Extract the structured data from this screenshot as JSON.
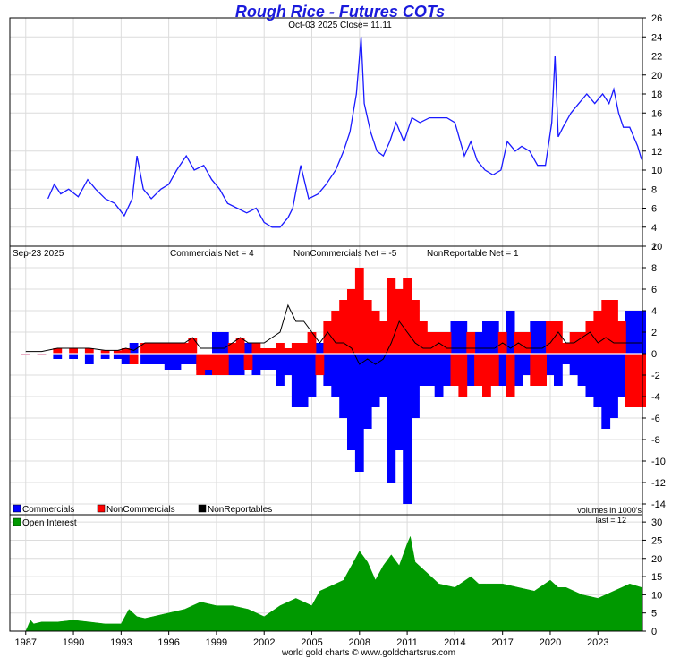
{
  "chart_data": [
    {
      "type": "line",
      "title": "Rough Rice - Futures COTs",
      "subtitle": "Oct-03  2025   Close= 11.11",
      "ylim": [
        2,
        26
      ],
      "yticks": [
        2,
        4,
        6,
        8,
        10,
        12,
        14,
        16,
        18,
        20,
        22,
        24,
        26
      ],
      "series": [
        {
          "x": [
            1988.4,
            1988.8,
            1989.2,
            1989.7,
            1990.3,
            1990.9,
            1991.4,
            1992.0,
            1992.6,
            1993.2,
            1993.7,
            1994.0,
            1994.4,
            1994.9,
            1995.5,
            1996.0,
            1996.5,
            1997.1,
            1997.6,
            1998.2,
            1998.7,
            1999.2,
            1999.7,
            2000.3,
            2000.9,
            2001.5,
            2002.0,
            2002.5,
            2003.0,
            2003.5,
            2003.8,
            2004.3,
            2004.8,
            2005.4,
            2005.9,
            2006.5,
            2007.0,
            2007.4,
            2007.8,
            2008.1,
            2008.3,
            2008.7,
            2009.1,
            2009.5,
            2009.9,
            2010.3,
            2010.8,
            2011.3,
            2011.8,
            2012.4,
            2012.9,
            2013.5,
            2014.0,
            2014.6,
            2015.0,
            2015.4,
            2015.9,
            2016.4,
            2016.9,
            2017.3,
            2017.8,
            2018.2,
            2018.7,
            2019.2,
            2019.7,
            2020.1,
            2020.3,
            2020.5,
            2020.8,
            2021.3,
            2021.8,
            2022.3,
            2022.8,
            2023.3,
            2023.7,
            2024.0,
            2024.3,
            2024.6,
            2025.0,
            2025.5,
            2025.75
          ],
          "values": [
            7,
            8.5,
            7.5,
            8,
            7.2,
            9,
            8,
            7,
            6.5,
            5.2,
            7,
            11.5,
            8,
            7,
            8,
            8.5,
            10,
            11.5,
            10,
            10.5,
            9,
            8,
            6.5,
            6,
            5.5,
            6,
            4.5,
            4,
            4,
            5,
            6,
            10.5,
            7,
            7.5,
            8.5,
            10,
            12,
            14,
            18,
            24,
            17,
            14,
            12,
            11.5,
            13,
            15,
            13,
            15.5,
            15,
            15.5,
            15.5,
            15.5,
            15,
            11.5,
            13,
            11,
            10,
            9.5,
            10,
            13,
            12,
            12.5,
            12,
            10.5,
            10.5,
            15,
            22,
            13.5,
            14.5,
            16,
            17,
            18,
            17,
            18,
            17,
            18.5,
            16,
            14.5,
            14.5,
            12.5,
            11.1
          ]
        }
      ]
    },
    {
      "type": "area",
      "date_label": "Sep-23  2025",
      "ylim": [
        -15,
        10
      ],
      "yticks": [
        -14,
        -12,
        -10,
        -8,
        -6,
        -4,
        -2,
        0,
        2,
        4,
        6,
        8,
        10
      ],
      "readouts": [
        "Commercials Net = 4",
        "NonCommercials Net = -5",
        "NonReportable Net = 1"
      ],
      "legend": [
        "Commercials",
        "NonCommercials",
        "NonReportables"
      ],
      "note": "volumes in 1000's",
      "x": [
        1987.0,
        1988.0,
        1989.0,
        1990.0,
        1991.0,
        1992.0,
        1992.8,
        1993.3,
        1993.8,
        1994.5,
        1995.0,
        1995.5,
        1996.0,
        1996.5,
        1997.0,
        1997.5,
        1998.0,
        1998.5,
        1999.0,
        1999.5,
        2000.0,
        2000.5,
        2001.0,
        2001.5,
        2002.0,
        2002.5,
        2003.0,
        2003.5,
        2004.0,
        2004.5,
        2005.0,
        2005.5,
        2006.0,
        2006.5,
        2007.0,
        2007.5,
        2008.0,
        2008.5,
        2009.0,
        2009.5,
        2010.0,
        2010.5,
        2011.0,
        2011.5,
        2012.0,
        2012.5,
        2013.0,
        2013.5,
        2014.0,
        2014.5,
        2015.0,
        2015.5,
        2016.0,
        2016.5,
        2017.0,
        2017.5,
        2018.0,
        2018.5,
        2019.0,
        2019.5,
        2020.0,
        2020.5,
        2021.0,
        2021.5,
        2022.0,
        2022.5,
        2023.0,
        2023.5,
        2024.0,
        2024.5,
        2025.0,
        2025.5,
        2025.75
      ],
      "series": [
        {
          "name": "Commercials",
          "color": "#0000ff",
          "values": [
            0,
            0,
            -0.5,
            -0.5,
            -1,
            -0.5,
            -0.5,
            -1,
            1,
            -1,
            -1,
            -1,
            -1.5,
            -1.5,
            -1,
            -1,
            -1.5,
            -2,
            2,
            2,
            -2,
            -2,
            1,
            -2,
            -1.5,
            -1.5,
            -3,
            -2,
            -5,
            -5,
            -4,
            1,
            -3,
            -4,
            -6,
            -9,
            -11,
            -7,
            -5,
            -4,
            -12,
            -9,
            -14,
            -6,
            -3,
            -3,
            -4,
            -3,
            3,
            3,
            -3,
            2,
            3,
            3,
            -3,
            4,
            -3,
            -2,
            3,
            3,
            -2,
            -3,
            -1,
            -2,
            -3,
            -4,
            -5,
            -7,
            -6,
            -4,
            4,
            4,
            4
          ]
        },
        {
          "name": "NonCommercials",
          "color": "#ff0000",
          "values": [
            0,
            0,
            0.5,
            0.5,
            0.5,
            0.3,
            0.3,
            0.5,
            -1,
            1,
            1,
            1,
            1,
            1,
            1,
            1.5,
            -2,
            -1.5,
            -2,
            -2,
            1,
            1.5,
            -1.5,
            1,
            0.5,
            0.5,
            1,
            0.5,
            1,
            1,
            2,
            -2,
            3,
            4,
            5,
            6,
            8,
            5,
            4,
            3,
            7,
            6,
            7,
            5,
            3,
            2,
            2,
            2,
            -3,
            -4,
            2,
            -3,
            -4,
            -3,
            2,
            -4,
            2,
            2,
            -3,
            -3,
            3,
            3,
            1,
            2,
            2,
            3,
            4,
            5,
            5,
            3,
            -5,
            -5,
            -5
          ]
        },
        {
          "name": "NonReportables",
          "color": "#000000",
          "values": [
            0.2,
            0.2,
            0.5,
            0.5,
            0.5,
            0.3,
            0.3,
            0.5,
            0.3,
            1,
            1,
            1,
            1,
            1,
            1,
            1.5,
            0.5,
            0.5,
            0.5,
            0.5,
            1,
            1.5,
            1,
            1,
            1,
            1.5,
            2,
            4.5,
            3,
            3,
            2,
            1,
            2,
            1,
            1,
            0.5,
            -1,
            -0.5,
            -1,
            -0.5,
            1,
            3,
            2,
            1,
            0.5,
            0.5,
            1,
            0.5,
            0.5,
            0.5,
            0.5,
            0.5,
            0.5,
            0.5,
            1,
            0.5,
            1,
            0.5,
            0.5,
            0.5,
            1,
            2,
            1,
            1,
            1.5,
            2,
            1,
            1.5,
            1,
            1,
            1,
            1,
            1
          ]
        }
      ]
    },
    {
      "type": "area",
      "legend": [
        "Open Interest"
      ],
      "note": "last = 12",
      "ylim": [
        0,
        32
      ],
      "yticks": [
        0,
        5,
        10,
        15,
        20,
        25,
        30
      ],
      "xlim": [
        1986.0,
        2025.8
      ],
      "xticks": [
        1987,
        1990,
        1993,
        1996,
        1999,
        2002,
        2005,
        2008,
        2011,
        2014,
        2017,
        2020,
        2023
      ],
      "series": [
        {
          "name": "Open Interest",
          "color": "#009900",
          "x": [
            1986.0,
            1987.0,
            1987.3,
            1987.5,
            1988.0,
            1989.0,
            1990.0,
            1991.0,
            1992.0,
            1993.0,
            1993.5,
            1994.0,
            1994.5,
            1995.0,
            1996.0,
            1997.0,
            1998.0,
            1999.0,
            2000.0,
            2001.0,
            2002.0,
            2003.0,
            2004.0,
            2005.0,
            2005.5,
            2006.0,
            2007.0,
            2007.5,
            2008.0,
            2008.5,
            2009.0,
            2009.5,
            2010.0,
            2010.5,
            2011.0,
            2011.2,
            2011.5,
            2012.0,
            2013.0,
            2014.0,
            2015.0,
            2015.5,
            2016.0,
            2017.0,
            2018.0,
            2019.0,
            2020.0,
            2020.5,
            2021.0,
            2022.0,
            2023.0,
            2024.0,
            2024.5,
            2025.0,
            2025.75
          ],
          "values": [
            0,
            0,
            3,
            2,
            2.5,
            2.5,
            3,
            2.5,
            2,
            2,
            6,
            4,
            3.5,
            4,
            5,
            6,
            8,
            7,
            7,
            6,
            4,
            7,
            9,
            7,
            11,
            12,
            14,
            18,
            22,
            19,
            14,
            18,
            21,
            18,
            24,
            26,
            19,
            17,
            13,
            12,
            15,
            13,
            13,
            13,
            12,
            11,
            14,
            12,
            12,
            10,
            9,
            11,
            12,
            13,
            12
          ]
        }
      ]
    }
  ],
  "axis": {
    "xtick_labels": [
      "1987",
      "1990",
      "1993",
      "1996",
      "1999",
      "2002",
      "2005",
      "2008",
      "2011",
      "2014",
      "2017",
      "2020",
      "2023"
    ]
  },
  "footer": {
    "credit": "world gold charts © www.goldchartsrus.com"
  }
}
